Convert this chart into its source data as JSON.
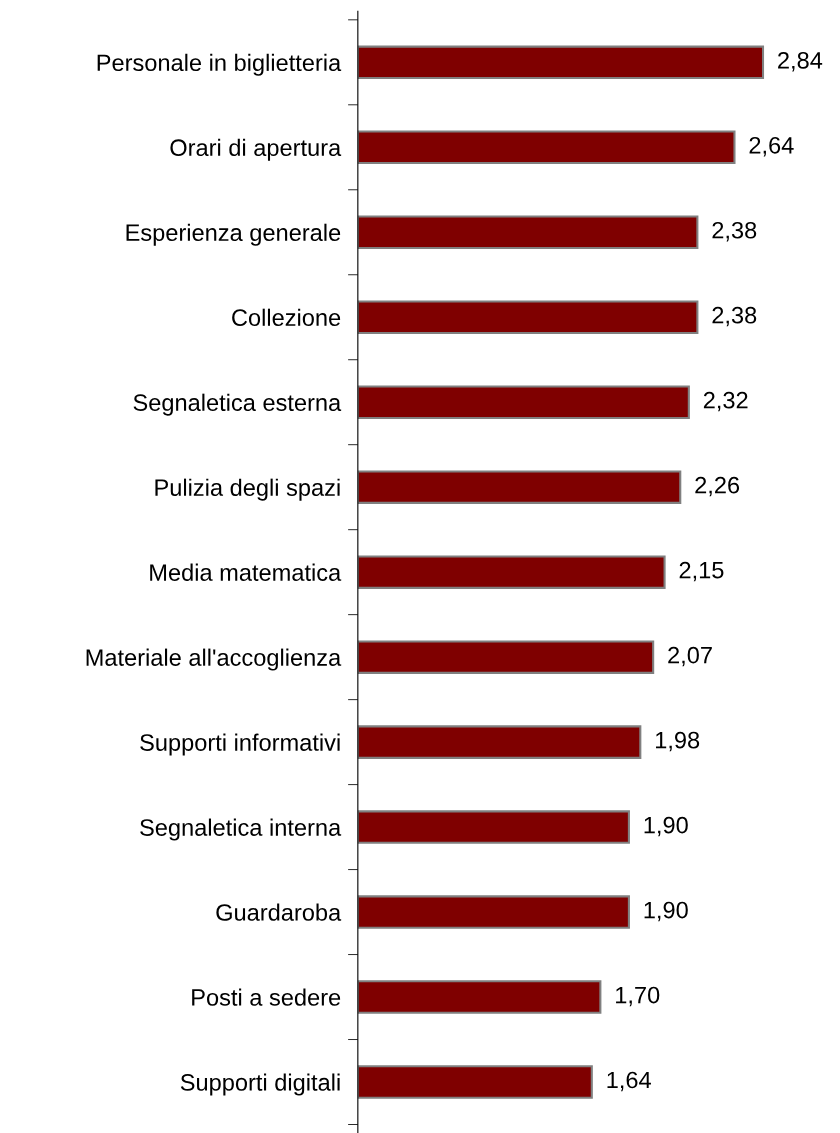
{
  "chart_data": {
    "type": "bar",
    "orientation": "horizontal",
    "categories": [
      "Personale in biglietteria",
      "Orari di apertura",
      "Esperienza generale",
      "Collezione",
      "Segnaletica esterna",
      "Pulizia degli spazi",
      "Media matematica",
      "Materiale all'accoglienza",
      "Supporti informativi",
      "Segnaletica interna",
      "Guardaroba",
      "Posti a sedere",
      "Supporti digitali"
    ],
    "values": [
      2.84,
      2.64,
      2.38,
      2.38,
      2.32,
      2.26,
      2.15,
      2.07,
      1.98,
      1.9,
      1.9,
      1.7,
      1.64
    ],
    "value_labels": [
      "2,84",
      "2,64",
      "2,38",
      "2,38",
      "2,32",
      "2,26",
      "2,15",
      "2,07",
      "1,98",
      "1,90",
      "1,90",
      "1,70",
      "1,64"
    ],
    "color": "#7f0000",
    "tick_labels": "y",
    "grid": false,
    "legend": false
  }
}
